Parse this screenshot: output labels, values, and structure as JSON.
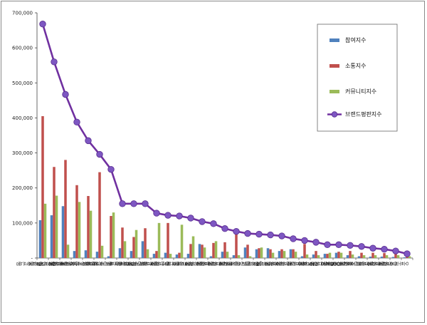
{
  "chart_data": {
    "type": "bar",
    "series": [
      {
        "name": "참여지수",
        "kind": "bar",
        "color": "#4F81BD"
      },
      {
        "name": "소통지수",
        "kind": "bar",
        "color": "#C0504D"
      },
      {
        "name": "커뮤니티지수",
        "kind": "bar",
        "color": "#9BBB59"
      },
      {
        "name": "브랜드평판지수",
        "kind": "line",
        "color": "#7030A0"
      }
    ],
    "categories": [
      "SBI저축은행",
      "OK저축은행",
      "웰컴저축은행",
      "아주저축은행",
      "한국투자저축은행",
      "그라운저축은행",
      "우리저축은행",
      "스마트저축은행",
      "IBK저축은행",
      "현대저축은행",
      "애큐온저축은행",
      "하나저축은행",
      "한화저축은행",
      "NH저축은행",
      "페퍼저축은행",
      "세람저축은행",
      "신한저축은행",
      "민국저축은행",
      "대신저축은행",
      "JT친애저축은행",
      "HK저축은행",
      "키움저축은행",
      "모아저축은행",
      "동양저축은행",
      "BNK저축은행",
      "조은저축은행",
      "OSB저축은행",
      "유진저축은행",
      "유니온저축은행",
      "상상인저축은행",
      "세종저축은행",
      "한성저축은행",
      "오투저축은행"
    ],
    "values": {
      "참여지수": [
        108000,
        122000,
        148000,
        20000,
        22000,
        18000,
        5000,
        28000,
        20000,
        48000,
        12000,
        15000,
        10000,
        12000,
        40000,
        5000,
        18000,
        8000,
        30000,
        25000,
        28000,
        20000,
        25000,
        5000,
        10000,
        12000,
        15000,
        8000,
        5000,
        4000,
        4000,
        3000,
        2000
      ],
      "소통지수": [
        405000,
        260000,
        280000,
        208000,
        177000,
        245000,
        120000,
        87000,
        60000,
        85000,
        20000,
        100000,
        15000,
        40000,
        38000,
        43000,
        45000,
        68000,
        38000,
        28000,
        25000,
        25000,
        25000,
        40000,
        20000,
        12000,
        18000,
        20000,
        15000,
        15000,
        14000,
        12000,
        5000
      ],
      "커뮤니티지수": [
        155000,
        178000,
        38000,
        160000,
        135000,
        35000,
        130000,
        48000,
        80000,
        25000,
        100000,
        12000,
        95000,
        62000,
        30000,
        48000,
        18000,
        8000,
        5000,
        30000,
        15000,
        20000,
        18000,
        10000,
        8000,
        15000,
        15000,
        10000,
        8000,
        8000,
        8000,
        8000,
        5000
      ],
      "브랜드평판지수": [
        668000,
        560000,
        467000,
        388000,
        335000,
        296000,
        253000,
        155000,
        155000,
        155000,
        128000,
        122000,
        120000,
        114000,
        104000,
        98000,
        84000,
        76000,
        70000,
        68000,
        66000,
        63000,
        55000,
        50000,
        45000,
        38000,
        38000,
        36000,
        33000,
        28000,
        25000,
        20000,
        12000
      ]
    },
    "ylim": [
      0,
      700000
    ],
    "yticks": [
      "-",
      "100,000",
      "200,000",
      "300,000",
      "400,000",
      "500,000",
      "600,000",
      "700,000"
    ],
    "legend_position": "right",
    "grid": false,
    "title": "",
    "xlabel": "",
    "ylabel": ""
  }
}
